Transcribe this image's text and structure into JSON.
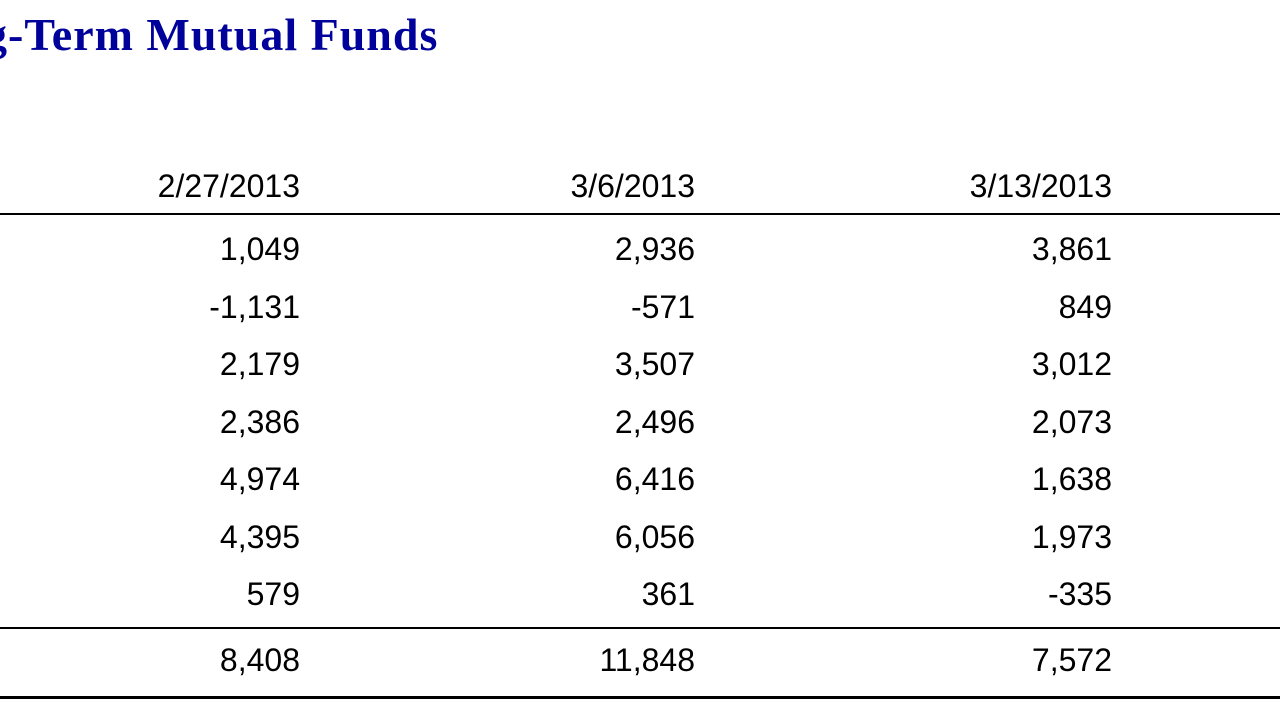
{
  "title": {
    "text": "g-Term Mutual Funds",
    "color": "#00009B"
  },
  "table": {
    "columns": [
      "2/27/2013",
      "3/6/2013",
      "3/13/2013"
    ],
    "rows": [
      [
        "1,049",
        "2,936",
        "3,861"
      ],
      [
        "-1,131",
        "-571",
        "849"
      ],
      [
        "2,179",
        "3,507",
        "3,012"
      ],
      [
        "2,386",
        "2,496",
        "2,073"
      ],
      [
        "4,974",
        "6,416",
        "1,638"
      ],
      [
        "4,395",
        "6,056",
        "1,973"
      ],
      [
        "579",
        "361",
        "-335"
      ]
    ],
    "total_row": [
      "8,408",
      "11,848",
      "7,572"
    ]
  }
}
